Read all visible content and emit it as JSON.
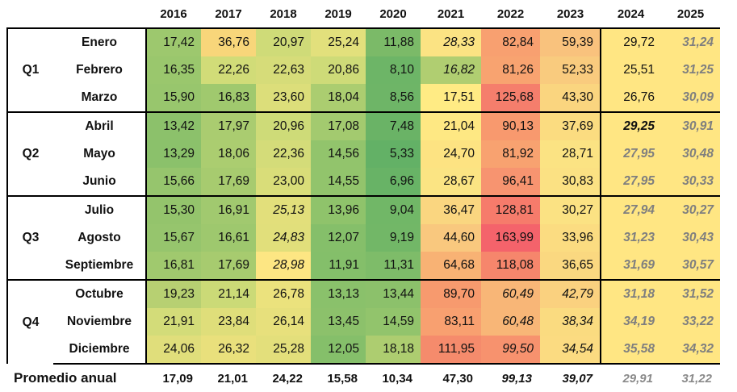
{
  "years": [
    "2016",
    "2017",
    "2018",
    "2019",
    "2020",
    "2021",
    "2022",
    "2023",
    "2024",
    "2025"
  ],
  "quarters": [
    "Q1",
    "Q2",
    "Q3",
    "Q4"
  ],
  "rows": [
    {
      "month": "Enero",
      "values": [
        "17,42",
        "36,76",
        "20,97",
        "25,24",
        "11,88",
        "28,33",
        "82,84",
        "59,39",
        "29,72",
        "31,24"
      ],
      "colors": [
        "#9dc86e",
        "#f8d67a",
        "#cfdb78",
        "#e2e07c",
        "#7bba68",
        "#fbe383",
        "#f8a070",
        "#f9c27d",
        "#ffe683",
        "#ffe683"
      ]
    },
    {
      "month": "Febrero",
      "values": [
        "16,35",
        "22,26",
        "22,63",
        "20,86",
        "8,10",
        "16,82",
        "81,26",
        "52,33",
        "25,51",
        "31,25"
      ],
      "colors": [
        "#9ac76d",
        "#d1dc78",
        "#d6dc79",
        "#cedb78",
        "#6db567",
        "#b0ce71",
        "#f8a370",
        "#f9cb7e",
        "#ffe683",
        "#ffe683"
      ]
    },
    {
      "month": "Marzo",
      "values": [
        "15,90",
        "16,83",
        "23,60",
        "18,04",
        "8,56",
        "17,51",
        "125,68",
        "43,30",
        "26,76",
        "30,09"
      ],
      "colors": [
        "#98c66d",
        "#a0c96e",
        "#dcde7a",
        "#abcd70",
        "#6eb567",
        "#ffeb84",
        "#f57e6c",
        "#fad57f",
        "#ffe683",
        "#ffe683"
      ]
    },
    {
      "month": "Abril",
      "values": [
        "13,42",
        "17,97",
        "20,96",
        "17,08",
        "7,48",
        "21,04",
        "90,13",
        "37,69",
        "29,25",
        "30,91"
      ],
      "colors": [
        "#8cc16b",
        "#aacc70",
        "#cedb78",
        "#a3ca6f",
        "#6ab366",
        "#fee883",
        "#f8996e",
        "#fbdc80",
        "#ffe683",
        "#ffe683"
      ]
    },
    {
      "month": "Mayo",
      "values": [
        "13,29",
        "18,06",
        "22,36",
        "14,56",
        "5,33",
        "24,70",
        "81,92",
        "28,71",
        "27,95",
        "30,48"
      ],
      "colors": [
        "#8bc16b",
        "#abcd70",
        "#d4dc79",
        "#92c46c",
        "#63b166",
        "#fde382",
        "#f8a270",
        "#fbe383",
        "#ffe683",
        "#ffe683"
      ]
    },
    {
      "month": "Junio",
      "values": [
        "15,66",
        "17,69",
        "23,00",
        "14,55",
        "6,96",
        "28,67",
        "96,41",
        "30,83",
        "27,95",
        "30,33"
      ],
      "colors": [
        "#96c56d",
        "#a7cb6f",
        "#d9dd79",
        "#92c46c",
        "#68b366",
        "#fbe483",
        "#f79470",
        "#fbe183",
        "#ffe683",
        "#ffe683"
      ]
    },
    {
      "month": "Julio",
      "values": [
        "15,30",
        "16,91",
        "25,13",
        "13,96",
        "9,04",
        "36,47",
        "128,81",
        "30,27",
        "27,94",
        "30,27"
      ],
      "colors": [
        "#94c46c",
        "#a1c96f",
        "#e2df7b",
        "#8fc36b",
        "#71b767",
        "#fad680",
        "#f67b6b",
        "#fbe283",
        "#ffe683",
        "#ffe683"
      ]
    },
    {
      "month": "Agosto",
      "values": [
        "15,67",
        "16,61",
        "24,83",
        "12,07",
        "9,19",
        "44,60",
        "163,99",
        "33,96",
        "31,23",
        "30,43"
      ],
      "colors": [
        "#96c56d",
        "#9ec86e",
        "#e1df7b",
        "#85bf6a",
        "#72b767",
        "#f9c87e",
        "#f4636b",
        "#fbdc81",
        "#ffe683",
        "#ffe683"
      ]
    },
    {
      "month": "Septiembre",
      "values": [
        "16,81",
        "17,69",
        "28,98",
        "11,91",
        "11,31",
        "64,68",
        "118,08",
        "36,65",
        "31,69",
        "30,57"
      ],
      "colors": [
        "#a0c96e",
        "#a7cb6f",
        "#fde683",
        "#84bf6a",
        "#7ebc69",
        "#f8b274",
        "#f6866c",
        "#fad880",
        "#ffe683",
        "#ffe683"
      ]
    },
    {
      "month": "Octubre",
      "values": [
        "19,23",
        "21,14",
        "26,78",
        "13,13",
        "13,44",
        "89,70",
        "60,49",
        "42,79",
        "31,18",
        "31,52"
      ],
      "colors": [
        "#b7d072",
        "#cbda77",
        "#ebe27d",
        "#8ac16b",
        "#8cc16b",
        "#f79a6e",
        "#f8b677",
        "#fad17f",
        "#ffe683",
        "#ffe683"
      ]
    },
    {
      "month": "Noviembre",
      "values": [
        "21,91",
        "23,84",
        "26,14",
        "13,45",
        "14,59",
        "83,11",
        "60,48",
        "38,34",
        "34,19",
        "33,22"
      ],
      "colors": [
        "#d3dc79",
        "#dfde7a",
        "#e7e07c",
        "#8cc16b",
        "#92c46c",
        "#f8a070",
        "#f8b677",
        "#fadb80",
        "#ffe683",
        "#ffe683"
      ]
    },
    {
      "month": "Diciembre",
      "values": [
        "24,06",
        "26,32",
        "25,28",
        "12,05",
        "18,18",
        "111,95",
        "99,50",
        "34,54",
        "35,58",
        "34,32"
      ],
      "colors": [
        "#e0de7b",
        "#e9e07c",
        "#e3df7b",
        "#85bf6a",
        "#adcd70",
        "#f58b6c",
        "#f7926e",
        "#fbdb81",
        "#ffe683",
        "#ffe683"
      ]
    }
  ],
  "emphasis": {
    "italic_cells": [
      [
        0,
        5
      ],
      [
        1,
        5
      ],
      [
        6,
        2
      ],
      [
        7,
        2
      ],
      [
        8,
        2
      ],
      [
        9,
        6
      ],
      [
        9,
        7
      ],
      [
        10,
        6
      ],
      [
        10,
        7
      ],
      [
        11,
        6
      ],
      [
        11,
        7
      ],
      [
        3,
        8
      ],
      [
        4,
        8
      ],
      [
        5,
        8
      ],
      [
        6,
        8
      ],
      [
        7,
        8
      ],
      [
        8,
        8
      ],
      [
        9,
        8
      ],
      [
        10,
        8
      ],
      [
        11,
        8
      ],
      [
        0,
        9
      ],
      [
        1,
        9
      ],
      [
        2,
        9
      ],
      [
        3,
        9
      ],
      [
        4,
        9
      ],
      [
        5,
        9
      ],
      [
        6,
        9
      ],
      [
        7,
        9
      ],
      [
        8,
        9
      ],
      [
        9,
        9
      ],
      [
        10,
        9
      ],
      [
        11,
        9
      ]
    ],
    "bold_cells": [
      [
        3,
        8
      ],
      [
        4,
        8
      ],
      [
        5,
        8
      ],
      [
        6,
        8
      ],
      [
        7,
        8
      ],
      [
        8,
        8
      ],
      [
        9,
        8
      ],
      [
        10,
        8
      ],
      [
        11,
        8
      ],
      [
        0,
        9
      ],
      [
        1,
        9
      ],
      [
        2,
        9
      ],
      [
        3,
        9
      ],
      [
        4,
        9
      ],
      [
        5,
        9
      ],
      [
        6,
        9
      ],
      [
        7,
        9
      ],
      [
        8,
        9
      ],
      [
        9,
        9
      ],
      [
        10,
        9
      ],
      [
        11,
        9
      ]
    ],
    "grey_cells": [
      [
        4,
        8
      ],
      [
        5,
        8
      ],
      [
        6,
        8
      ],
      [
        7,
        8
      ],
      [
        8,
        8
      ],
      [
        9,
        8
      ],
      [
        10,
        8
      ],
      [
        11,
        8
      ],
      [
        0,
        9
      ],
      [
        1,
        9
      ],
      [
        2,
        9
      ],
      [
        3,
        9
      ],
      [
        4,
        9
      ],
      [
        5,
        9
      ],
      [
        6,
        9
      ],
      [
        7,
        9
      ],
      [
        8,
        9
      ],
      [
        9,
        9
      ],
      [
        10,
        9
      ],
      [
        11,
        9
      ]
    ]
  },
  "average": {
    "label": "Promedio anual",
    "values": [
      "17,09",
      "21,01",
      "24,22",
      "15,58",
      "10,34",
      "47,30",
      "99,13",
      "39,07",
      "29,91",
      "31,22"
    ],
    "italic": [
      false,
      false,
      false,
      false,
      false,
      false,
      true,
      true,
      true,
      true
    ],
    "grey": [
      false,
      false,
      false,
      false,
      false,
      false,
      false,
      false,
      true,
      true
    ]
  }
}
